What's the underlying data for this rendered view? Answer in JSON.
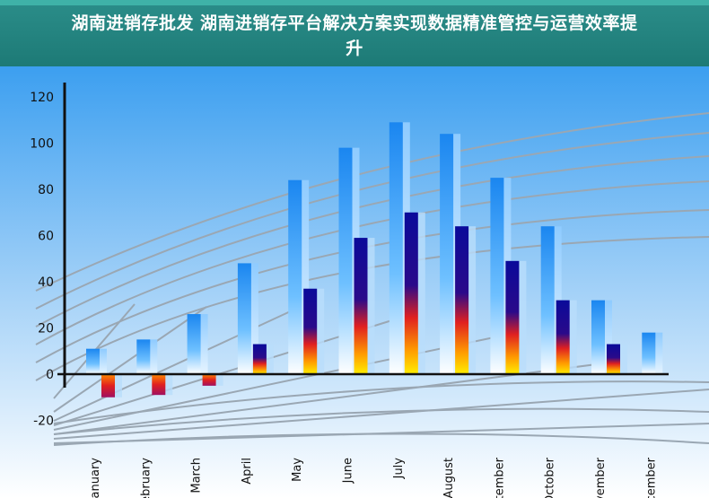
{
  "header": {
    "title": "湖南进销存批发 湖南进销存平台解决方案实现数据精准管控与运营效率提升"
  },
  "colors": {
    "header_bg": "#1d7a76",
    "header_accent": "#3fb2a8",
    "plot_bg_top": "#3c9ff0",
    "plot_bg_bottom": "#ffffff",
    "series1": "#1e90ff",
    "series2": "#0a0a9a",
    "series2_hot": "#ffee00"
  },
  "chart_data": {
    "type": "bar",
    "categories": [
      "January",
      "February",
      "March",
      "April",
      "May",
      "June",
      "July",
      "August",
      "September",
      "October",
      "November",
      "December"
    ],
    "series": [
      {
        "values": [
          11,
          15,
          26,
          48,
          84,
          98,
          109,
          104,
          85,
          64,
          32,
          18
        ]
      },
      {
        "values": [
          -10,
          -9,
          -5,
          13,
          37,
          59,
          70,
          64,
          49,
          32,
          13,
          null
        ]
      }
    ],
    "y_ticks": [
      "120",
      "100",
      "80",
      "60",
      "40",
      "20",
      "0",
      "-20"
    ],
    "ylim": [
      -20,
      120
    ],
    "grid": true,
    "legend": "none"
  }
}
